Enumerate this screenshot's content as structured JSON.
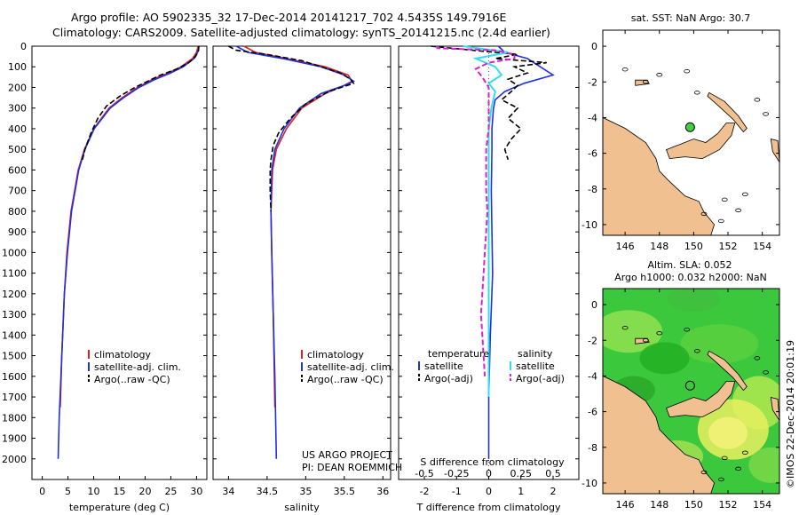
{
  "header": {
    "line1": "Argo profile: AO 5902335_32 17-Dec-2014 20141217_702 4.5435S 149.7916E",
    "line2": "Climatology: CARS2009. Satellite-adjusted climatology: synTS_20141215.nc (2.4d earlier)"
  },
  "credits": {
    "project": "US ARGO PROJECT",
    "pi": "PI: DEAN ROEMMICH",
    "imos": "©IMOS 22-Dec-2014 20:01:19"
  },
  "colors": {
    "clim": "#e02020",
    "sat": "#2030e0",
    "argo": "#000000",
    "sal_sat": "#30e0f0",
    "sal_argo": "#e020d0",
    "land": "#f0c090"
  },
  "chart_data": [
    {
      "type": "line",
      "name": "temperature",
      "xlabel": "temperature (deg C)",
      "ylabel": "",
      "xlim": [
        -2,
        32
      ],
      "ylim": [
        2100,
        0
      ],
      "xticks": [
        0,
        5,
        10,
        15,
        20,
        25,
        30
      ],
      "yticks": [
        0,
        100,
        200,
        300,
        400,
        500,
        600,
        700,
        800,
        900,
        1000,
        1100,
        1200,
        1300,
        1400,
        1500,
        1600,
        1700,
        1800,
        1900,
        2000
      ],
      "legend": [
        "climatology",
        "satellite-adj. clim.",
        "Argo(..raw -QC)"
      ],
      "series": [
        {
          "name": "climatology",
          "depth": [
            0,
            30,
            60,
            100,
            130,
            160,
            200,
            250,
            300,
            400,
            500,
            600,
            800,
            1000,
            1200,
            1500,
            1750
          ],
          "values": [
            30.3,
            30.0,
            29.2,
            27.0,
            24.5,
            21.5,
            18.5,
            15.5,
            13.0,
            10.0,
            8.2,
            7.0,
            5.6,
            4.8,
            4.3,
            3.8,
            3.5
          ]
        },
        {
          "name": "satellite-adj. clim.",
          "depth": [
            0,
            30,
            60,
            100,
            130,
            160,
            200,
            250,
            300,
            400,
            500,
            600,
            800,
            1000,
            1200,
            1500,
            1800,
            2000
          ],
          "values": [
            30.5,
            30.2,
            29.5,
            27.4,
            25.0,
            22.0,
            18.8,
            15.8,
            13.2,
            10.1,
            8.3,
            7.1,
            5.7,
            4.9,
            4.3,
            3.8,
            3.3,
            3.1
          ]
        },
        {
          "name": "Argo(..raw -QC)",
          "depth": [
            0,
            20,
            50,
            80,
            110,
            140,
            170,
            200,
            240,
            290,
            350,
            420,
            500,
            550
          ],
          "values": [
            30.4,
            30.4,
            29.8,
            28.5,
            26.2,
            23.0,
            20.5,
            18.0,
            15.2,
            12.5,
            10.8,
            9.5,
            8.3,
            7.8
          ]
        }
      ]
    },
    {
      "type": "line",
      "name": "salinity",
      "xlabel": "salinity",
      "xlim": [
        33.8,
        36.1
      ],
      "ylim": [
        2100,
        0
      ],
      "xticks": [
        34,
        34.5,
        35,
        35.5,
        36
      ],
      "legend": [
        "climatology",
        "satellite-adj. clim.",
        "Argo(..raw -QC)"
      ],
      "series": [
        {
          "name": "climatology",
          "depth": [
            0,
            30,
            60,
            100,
            140,
            170,
            190,
            230,
            300,
            400,
            500,
            600,
            800,
            1000,
            1300,
            1750
          ],
          "values": [
            34.2,
            34.35,
            34.75,
            35.25,
            35.55,
            35.6,
            35.5,
            35.25,
            34.95,
            34.75,
            34.62,
            34.57,
            34.55,
            34.56,
            34.58,
            34.6
          ]
        },
        {
          "name": "satellite-adj. clim.",
          "depth": [
            0,
            30,
            60,
            100,
            140,
            170,
            190,
            230,
            300,
            400,
            500,
            600,
            800,
            1000,
            1300,
            1600,
            2000
          ],
          "values": [
            34.1,
            34.25,
            34.7,
            35.2,
            35.5,
            35.62,
            35.5,
            35.2,
            34.92,
            34.72,
            34.6,
            34.56,
            34.55,
            34.56,
            34.58,
            34.6,
            34.62
          ]
        },
        {
          "name": "Argo(..raw -QC)",
          "depth": [
            0,
            20,
            40,
            70,
            100,
            130,
            160,
            180,
            220,
            280,
            350,
            420,
            480,
            550,
            600,
            700,
            800
          ],
          "values": [
            34.0,
            34.1,
            34.5,
            34.95,
            35.2,
            35.45,
            35.58,
            35.62,
            35.3,
            35.0,
            34.8,
            34.65,
            34.58,
            34.55,
            34.54,
            34.54,
            34.55
          ]
        }
      ]
    },
    {
      "type": "line",
      "name": "difference from climatology",
      "xlabel_top": "S difference from climatology",
      "xlabel": "T difference from climatology",
      "xlim": [
        -2.8,
        2.8
      ],
      "ylim": [
        2100,
        0
      ],
      "xticks_T": [
        -2,
        -1,
        0,
        1,
        2
      ],
      "xticks_S": [
        -0.5,
        -0.25,
        0,
        0.25,
        0.5
      ],
      "xticklabels_S": [
        "-0.5",
        "-0.25",
        "0",
        "0.25",
        "0.5"
      ],
      "legend_headers": [
        "temperature",
        "salinity"
      ],
      "legend": [
        "satellite",
        "Argo(-adj)",
        "satellite",
        "Argo(-adj)"
      ],
      "series": [
        {
          "name": "T satellite",
          "depth": [
            0,
            30,
            60,
            100,
            140,
            180,
            220,
            260,
            300,
            400,
            500,
            700,
            900,
            1100,
            1400,
            1700,
            2000
          ],
          "values": [
            0.3,
            0.5,
            1.2,
            1.6,
            2.0,
            1.1,
            0.5,
            0.2,
            0.15,
            0.1,
            0.1,
            0.08,
            0.1,
            0.12,
            0.05,
            0.0,
            0.0
          ]
        },
        {
          "name": "T Argo(-adj)",
          "depth": [
            0,
            20,
            40,
            60,
            80,
            100,
            130,
            160,
            190,
            220,
            260,
            300,
            350,
            400,
            450,
            500,
            550
          ],
          "values": [
            -1.8,
            -0.5,
            0.9,
            0.2,
            1.8,
            0.8,
            1.2,
            0.6,
            0.9,
            0.7,
            0.4,
            0.9,
            0.6,
            1.0,
            0.7,
            0.5,
            0.6
          ]
        },
        {
          "name": "S satellite",
          "depth": [
            0,
            30,
            60,
            100,
            140,
            180,
            220,
            300,
            400,
            500,
            700,
            1000,
            1400,
            1700
          ],
          "values": [
            -0.2,
            0.15,
            -0.1,
            0.05,
            0.1,
            0.0,
            0.05,
            0.02,
            0.0,
            0.0,
            0.0,
            0.0,
            0.0,
            0.0
          ]
        },
        {
          "name": "S Argo(-adj)",
          "depth": [
            0,
            10,
            20,
            40,
            60,
            80,
            110,
            150,
            200,
            300,
            400,
            500,
            600,
            700,
            800,
            900,
            1000,
            1100,
            1200,
            1300,
            1400,
            1500,
            1600
          ],
          "values": [
            -0.4,
            -0.4,
            0.05,
            0.2,
            0.2,
            0.0,
            -0.1,
            -0.05,
            0.0,
            0.0,
            0.0,
            -0.02,
            -0.02,
            -0.02,
            -0.01,
            -0.02,
            -0.03,
            -0.04,
            -0.05,
            -0.06,
            -0.05,
            -0.04,
            -0.03
          ]
        }
      ]
    },
    {
      "type": "map",
      "name": "sat SST map",
      "title": "sat. SST: NaN Argo: 30.7",
      "xticks": [
        146,
        148,
        150,
        152,
        154
      ],
      "yticks": [
        0,
        -2,
        -4,
        -6,
        -8,
        -10
      ],
      "float_lon": 149.79,
      "float_lat": -4.54
    },
    {
      "type": "map",
      "name": "altimetry SLA map",
      "title1": "Altim. SLA: 0.052",
      "title2": "Argo h1000: 0.032 h2000: NaN",
      "xticks": [
        146,
        148,
        150,
        152,
        154
      ],
      "yticks": [
        0,
        -2,
        -4,
        -6,
        -8,
        -10
      ],
      "float_lon": 149.79,
      "float_lat": -4.54
    }
  ]
}
